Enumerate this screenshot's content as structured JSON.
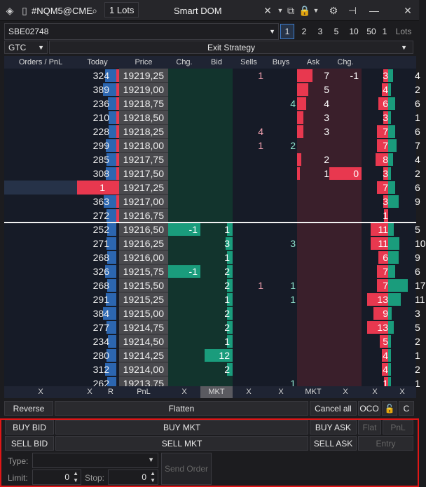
{
  "titlebar": {
    "symbol": "#NQM5@CME",
    "lots": "1",
    "lots_unit": "Lots",
    "title": "Smart DOM"
  },
  "account": {
    "name": "SBE02748",
    "lot_sizes": [
      "1",
      "2",
      "3",
      "5",
      "10",
      "50",
      "1"
    ],
    "lots_label": "Lots",
    "selected": "1"
  },
  "strategy": {
    "tif": "GTC",
    "exit": "Exit Strategy"
  },
  "headers": [
    "Orders / PnL",
    "Today",
    "Price",
    "Chg.",
    "Bid",
    "Sells",
    "Buys",
    "Ask",
    "Chg.",
    "",
    ""
  ],
  "rows": [
    {
      "today": "324",
      "price": "19219,25",
      "sells": "1",
      "ask": "7",
      "chg2": "-1",
      "v1": "3",
      "v2": "4"
    },
    {
      "today": "389",
      "price": "19219,00",
      "ask": "5",
      "v1": "4",
      "v2": "2"
    },
    {
      "today": "236",
      "price": "19218,75",
      "buys": "4",
      "ask": "4",
      "v1": "6",
      "v2": "6"
    },
    {
      "today": "210",
      "price": "19218,50",
      "ask": "3",
      "v1": "3",
      "v2": "1"
    },
    {
      "today": "228",
      "price": "19218,25",
      "sells": "4",
      "ask": "3",
      "v1": "7",
      "v2": "6"
    },
    {
      "today": "299",
      "price": "19218,00",
      "sells": "1",
      "buys": "2",
      "v1": "7",
      "v2": "7"
    },
    {
      "today": "285",
      "price": "19217,75",
      "ask": "2",
      "v1": "8",
      "v2": "4"
    },
    {
      "today": "308",
      "price": "19217,50",
      "ask": "1",
      "chg2": "0",
      "v1": "3",
      "v2": "2"
    },
    {
      "orders": "1",
      "price": "19217,25",
      "v1": "7",
      "v2": "6"
    },
    {
      "today": "363",
      "price": "19217,00",
      "v1": "3",
      "v2": "9"
    },
    {
      "today": "272",
      "price": "19216,75",
      "v1": "1",
      "v2": ""
    },
    {
      "today": "252",
      "price": "19216,50",
      "chg1": "-1",
      "bid": "1",
      "v1": "11",
      "v2": "5"
    },
    {
      "today": "271",
      "price": "19216,25",
      "bid": "3",
      "buys": "3",
      "v1": "11",
      "v2": "10"
    },
    {
      "today": "268",
      "price": "19216,00",
      "bid": "1",
      "v1": "6",
      "v2": "9"
    },
    {
      "today": "326",
      "price": "19215,75",
      "chg1": "-1",
      "bid": "2",
      "v1": "7",
      "v2": "6"
    },
    {
      "today": "268",
      "price": "19215,50",
      "bid": "2",
      "sells": "1",
      "buys": "1",
      "v1": "7",
      "v2": "17"
    },
    {
      "today": "291",
      "price": "19215,25",
      "bid": "1",
      "buys": "1",
      "v1": "13",
      "v2": "11"
    },
    {
      "today": "384",
      "price": "19215,00",
      "bid": "2",
      "v1": "9",
      "v2": "3"
    },
    {
      "today": "277",
      "price": "19214,75",
      "bid": "2",
      "v1": "13",
      "v2": "5"
    },
    {
      "today": "234",
      "price": "19214,50",
      "bid": "1",
      "v1": "5",
      "v2": "2"
    },
    {
      "today": "280",
      "price": "19214,25",
      "bid": "12",
      "v1": "4",
      "v2": "1"
    },
    {
      "today": "312",
      "price": "19214,00",
      "bid": "2",
      "v1": "4",
      "v2": "2"
    },
    {
      "today": "262",
      "price": "19213,75",
      "buys": "1",
      "v1": "1",
      "v2": "1"
    }
  ],
  "footer": [
    "X",
    "X",
    "R",
    "PnL",
    "X",
    "MKT",
    "X",
    "X",
    "MKT",
    "X",
    "X",
    "X"
  ],
  "actions": {
    "reverse": "Reverse",
    "flatten": "Flatten",
    "cancel_all": "Cancel all",
    "oco": "OCO",
    "c": "C"
  },
  "orders": {
    "buy_bid": "BUY BID",
    "buy_mkt": "BUY MKT",
    "buy_ask": "BUY ASK",
    "flat": "Flat",
    "pnl": "PnL",
    "sell_bid": "SELL BID",
    "sell_mkt": "SELL MKT",
    "sell_ask": "SELL ASK",
    "entry": "Entry",
    "type_label": "Type:",
    "limit_label": "Limit:",
    "limit_value": "0",
    "stop_label": "Stop:",
    "stop_value": "0",
    "send": "Send Order"
  },
  "colors": {
    "bid": "#1a9c7c",
    "ask": "#e8384f",
    "volume": "#2c66b0",
    "bg": "#161b27"
  }
}
